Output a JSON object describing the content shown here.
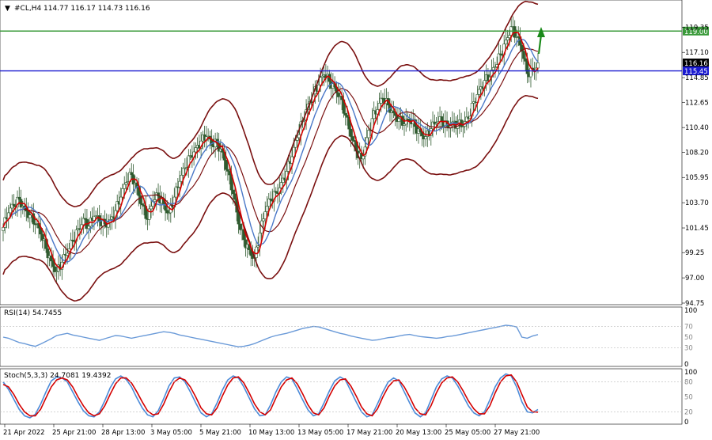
{
  "header": {
    "symbol": "#CL,H4",
    "ohlc": "114.77 116.17 114.73 116.16"
  },
  "price_labels": {
    "resistance": "119.00",
    "current": "116.16",
    "support": "115.45"
  },
  "colors": {
    "candle": "#2f5a2f",
    "ma_fast": "#d40000",
    "ma_slow": "#4a78c8",
    "bollinger": "#7a1010",
    "level_green": "#3a9a3a",
    "level_blue": "#1a1ad0",
    "rsi": "#6a9ad8",
    "stoch_main": "#4a8ad8",
    "stoch_signal": "#d40000",
    "arrow": "#1a8a1a"
  },
  "chart_data": [
    {
      "type": "candlestick",
      "title": "#CL,H4",
      "y_ticks": [
        "119.35",
        "117.10",
        "114.85",
        "112.65",
        "110.40",
        "108.20",
        "105.95",
        "103.70",
        "101.45",
        "99.25",
        "97.00",
        "94.75"
      ],
      "y_tick_values": [
        119.35,
        117.1,
        114.85,
        112.65,
        110.4,
        108.2,
        105.95,
        103.7,
        101.45,
        99.25,
        97.0,
        94.75
      ],
      "ylim": [
        94.75,
        120.5
      ],
      "levels": [
        {
          "label": "119.00",
          "value": 119.0
        },
        {
          "label": "115.45",
          "value": 115.45
        }
      ],
      "key_points": [
        101.5,
        102.8,
        103.4,
        104.0,
        103.2,
        102.6,
        101.8,
        100.9,
        99.6,
        98.5,
        97.6,
        98.4,
        99.2,
        100.3,
        101.4,
        102.3,
        101.6,
        102.5,
        102.0,
        101.8,
        102.2,
        103.0,
        104.2,
        105.5,
        106.2,
        105.0,
        103.5,
        102.2,
        103.8,
        104.3,
        103.6,
        102.8,
        104.2,
        105.6,
        106.8,
        107.9,
        108.6,
        109.2,
        109.6,
        108.8,
        109.0,
        108.2,
        106.5,
        104.5,
        101.8,
        100.4,
        99.5,
        98.8,
        101.0,
        102.9,
        104.0,
        104.6,
        105.5,
        106.5,
        107.8,
        109.5,
        111.0,
        112.5,
        113.4,
        114.2,
        115.1,
        114.5,
        114.0,
        113.2,
        111.5,
        109.6,
        108.3,
        107.6,
        109.5,
        111.2,
        112.0,
        113.0,
        112.4,
        111.7,
        111.2,
        110.7,
        111.0,
        110.5,
        110.0,
        109.6,
        110.3,
        110.8,
        111.0,
        110.6,
        110.9,
        110.7,
        110.5,
        111.2,
        112.7,
        113.8,
        114.6,
        114.9,
        115.8,
        116.9,
        118.2,
        119.4,
        118.5,
        117.2,
        115.2,
        115.6,
        116.16
      ],
      "candles_per_segment": 3,
      "bollinger_offset": 4.2,
      "ma_fast_period": 5,
      "ma_slow_period": 12
    },
    {
      "type": "line",
      "title": "RSI(14) 54.7455",
      "y_ticks": [
        "100",
        "70",
        "50",
        "30",
        "0"
      ],
      "y_tick_values": [
        100,
        70,
        50,
        30,
        0
      ],
      "ylim": [
        0,
        100
      ],
      "values": [
        50,
        48,
        44,
        40,
        38,
        35,
        33,
        37,
        42,
        47,
        53,
        55,
        57,
        54,
        52,
        50,
        48,
        46,
        44,
        47,
        50,
        53,
        52,
        50,
        48,
        50,
        52,
        54,
        56,
        58,
        60,
        59,
        57,
        54,
        52,
        50,
        48,
        46,
        44,
        42,
        40,
        38,
        36,
        34,
        32,
        33,
        35,
        38,
        42,
        46,
        50,
        53,
        55,
        57,
        60,
        63,
        66,
        68,
        70,
        69,
        66,
        63,
        60,
        57,
        55,
        52,
        50,
        48,
        46,
        44,
        45,
        47,
        49,
        50,
        52,
        54,
        55,
        53,
        51,
        50,
        49,
        48,
        49,
        51,
        52,
        54,
        56,
        58,
        60,
        62,
        64,
        66,
        68,
        70,
        72,
        71,
        69,
        50,
        48,
        52,
        54.7455
      ]
    },
    {
      "type": "line",
      "title": "Stoch(5,3,3) 24.7081 19.4392",
      "y_ticks": [
        "100",
        "80",
        "50",
        "20",
        "0"
      ],
      "y_tick_values": [
        100,
        80,
        50,
        20,
        0
      ],
      "ylim": [
        0,
        100
      ],
      "values": [
        80,
        65,
        45,
        25,
        12,
        8,
        15,
        35,
        60,
        82,
        90,
        88,
        80,
        60,
        40,
        22,
        12,
        10,
        20,
        42,
        68,
        86,
        92,
        85,
        70,
        48,
        28,
        14,
        10,
        22,
        46,
        72,
        88,
        90,
        80,
        60,
        38,
        18,
        10,
        16,
        38,
        64,
        84,
        92,
        88,
        70,
        48,
        26,
        12,
        14,
        34,
        60,
        80,
        90,
        86,
        66,
        44,
        24,
        12,
        16,
        38,
        62,
        82,
        90,
        84,
        62,
        40,
        20,
        10,
        14,
        36,
        60,
        80,
        88,
        82,
        60,
        38,
        18,
        10,
        18,
        44,
        70,
        86,
        92,
        88,
        72,
        52,
        32,
        18,
        12,
        20,
        44,
        70,
        88,
        96,
        92,
        70,
        40,
        20,
        18,
        24.7081
      ],
      "signal": [
        75,
        70,
        55,
        35,
        20,
        12,
        12,
        25,
        48,
        70,
        84,
        88,
        84,
        70,
        50,
        32,
        18,
        12,
        16,
        32,
        55,
        76,
        88,
        88,
        78,
        60,
        40,
        22,
        14,
        16,
        35,
        60,
        80,
        88,
        84,
        70,
        50,
        28,
        16,
        14,
        28,
        52,
        74,
        88,
        90,
        78,
        58,
        36,
        20,
        14,
        24,
        48,
        70,
        84,
        88,
        76,
        56,
        34,
        18,
        14,
        28,
        52,
        72,
        84,
        86,
        72,
        52,
        30,
        16,
        12,
        26,
        50,
        70,
        82,
        84,
        70,
        50,
        28,
        16,
        14,
        32,
        58,
        78,
        88,
        90,
        80,
        62,
        42,
        26,
        16,
        16,
        32,
        58,
        80,
        92,
        94,
        80,
        55,
        30,
        20,
        19.4392
      ]
    }
  ],
  "time_axis": {
    "labels": [
      "21 Apr 2022",
      "25 Apr 21:00",
      "28 Apr 13:00",
      "3 May 05:00",
      "5 May 21:00",
      "10 May 13:00",
      "13 May 05:00",
      "17 May 21:00",
      "20 May 13:00",
      "25 May 05:00",
      "27 May 21:00"
    ]
  },
  "indicator_labels": {
    "rsi": "RSI(14) 54.7455",
    "stoch": "Stoch(5,3,3) 24.7081 19.4392"
  }
}
